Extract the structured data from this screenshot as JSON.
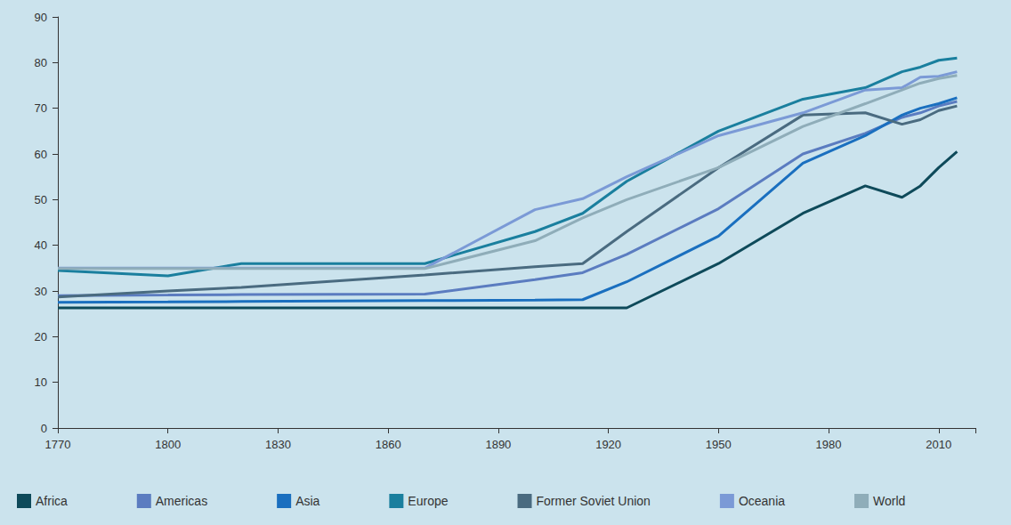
{
  "chart_data": {
    "type": "line",
    "x": [
      1770,
      1800,
      1820,
      1870,
      1900,
      1913,
      1925,
      1950,
      1973,
      1990,
      2000,
      2005,
      2010,
      2015
    ],
    "series": [
      {
        "name": "Africa",
        "color": "#0e4a5a",
        "values": [
          26.3,
          26.3,
          26.3,
          26.3,
          26.3,
          26.3,
          26.3,
          36,
          47,
          53,
          50.5,
          53,
          57,
          60.5
        ]
      },
      {
        "name": "Americas",
        "color": "#5b7cc0",
        "values": [
          29,
          29.1,
          29.2,
          29.3,
          32.5,
          34,
          38,
          48,
          60,
          64.5,
          68,
          69,
          70.5,
          71.5
        ]
      },
      {
        "name": "Asia",
        "color": "#1a6fbf",
        "values": [
          27.5,
          27.6,
          27.7,
          27.9,
          28,
          28.1,
          32,
          42,
          58,
          64,
          68.5,
          70,
          71,
          72.3
        ]
      },
      {
        "name": "Europe",
        "color": "#1a7f9e",
        "values": [
          34.5,
          33.3,
          36,
          36,
          43,
          47,
          54,
          65,
          72,
          74.5,
          78,
          79,
          80.5,
          81
        ]
      },
      {
        "name": "Former Soviet Union",
        "color": "#4a6b80",
        "values": [
          28.7,
          30,
          30.8,
          33.5,
          35.3,
          36,
          43,
          57,
          68.5,
          69,
          66.5,
          67.5,
          69.5,
          70.5
        ]
      },
      {
        "name": "Oceania",
        "color": "#7b9ad6",
        "values": [
          35,
          35,
          35,
          35,
          47.8,
          50.2,
          55,
          64,
          69,
          74,
          74.5,
          76.8,
          77,
          78
        ]
      },
      {
        "name": "World",
        "color": "#8fadb9",
        "values": [
          34.9,
          34.9,
          34.9,
          34.9,
          41,
          46,
          50,
          57,
          66,
          71,
          74,
          75.5,
          76.5,
          77.2
        ]
      }
    ],
    "xlim": [
      1770,
      2020
    ],
    "xticks": [
      1770,
      1800,
      1830,
      1860,
      1890,
      1920,
      1950,
      1980,
      2010
    ],
    "ylim": [
      0,
      90
    ],
    "yticks": [
      0,
      10,
      20,
      30,
      40,
      50,
      60,
      70,
      80,
      90
    ],
    "grid": false,
    "legend": "bottom-left"
  }
}
